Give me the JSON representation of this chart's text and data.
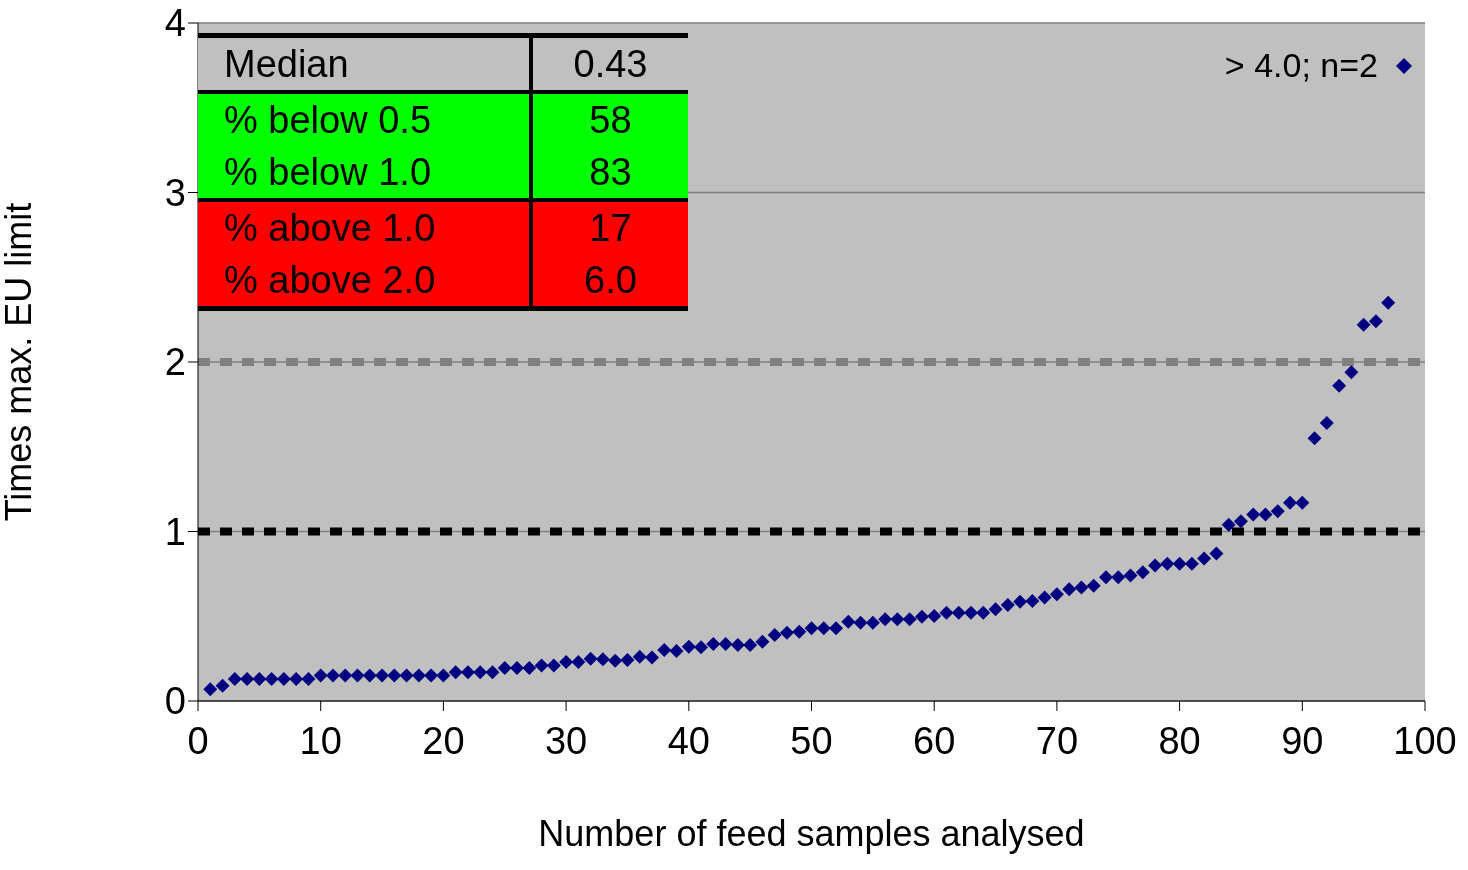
{
  "chart_data": {
    "type": "scatter",
    "xlabel": "Number of feed samples analysed",
    "ylabel": "Times max. EU limit",
    "x": [
      1,
      2,
      3,
      4,
      5,
      6,
      7,
      8,
      9,
      10,
      11,
      12,
      13,
      14,
      15,
      16,
      17,
      18,
      19,
      20,
      21,
      22,
      23,
      24,
      25,
      26,
      27,
      28,
      29,
      30,
      31,
      32,
      33,
      34,
      35,
      36,
      37,
      38,
      39,
      40,
      41,
      42,
      43,
      44,
      45,
      46,
      47,
      48,
      49,
      50,
      51,
      52,
      53,
      54,
      55,
      56,
      57,
      58,
      59,
      60,
      61,
      62,
      63,
      64,
      65,
      66,
      67,
      68,
      69,
      70,
      71,
      72,
      73,
      74,
      75,
      76,
      77,
      78,
      79,
      80,
      81,
      82,
      83,
      84,
      85,
      86,
      87,
      88,
      89,
      90,
      91,
      92,
      93,
      94,
      95,
      96,
      97
    ],
    "series": [
      {
        "color": "#000080",
        "values": [
          0.07,
          0.09,
          0.13,
          0.13,
          0.13,
          0.13,
          0.13,
          0.13,
          0.13,
          0.15,
          0.15,
          0.15,
          0.15,
          0.15,
          0.15,
          0.15,
          0.15,
          0.15,
          0.15,
          0.15,
          0.17,
          0.17,
          0.17,
          0.17,
          0.195,
          0.195,
          0.195,
          0.21,
          0.21,
          0.23,
          0.23,
          0.25,
          0.246,
          0.238,
          0.242,
          0.261,
          0.257,
          0.301,
          0.295,
          0.32,
          0.317,
          0.336,
          0.336,
          0.33,
          0.33,
          0.35,
          0.389,
          0.403,
          0.409,
          0.429,
          0.429,
          0.429,
          0.468,
          0.462,
          0.462,
          0.482,
          0.482,
          0.482,
          0.497,
          0.501,
          0.521,
          0.521,
          0.521,
          0.521,
          0.541,
          0.566,
          0.586,
          0.59,
          0.61,
          0.63,
          0.66,
          0.67,
          0.68,
          0.73,
          0.73,
          0.74,
          0.76,
          0.8,
          0.81,
          0.81,
          0.81,
          0.84,
          0.87,
          1.04,
          1.06,
          1.1,
          1.1,
          1.12,
          1.17,
          1.17,
          1.55,
          1.64,
          1.86,
          1.94,
          2.22,
          2.24,
          2.35
        ]
      }
    ],
    "xlim": [
      0,
      100
    ],
    "xticks": [
      0,
      10,
      20,
      30,
      40,
      50,
      60,
      70,
      80,
      90,
      100
    ],
    "ylim": [
      0,
      4
    ],
    "yticks": [
      0,
      1,
      2,
      3,
      4
    ],
    "grid": "y",
    "marker": "diamond",
    "ref_lines": [
      {
        "axis": "y",
        "value": 1,
        "color": "#000000",
        "line_style": "dashed"
      },
      {
        "axis": "y",
        "value": 2,
        "color": "#808080",
        "line_style": "dashed"
      }
    ],
    "annotations": [
      "Median",
      "0.43",
      "% below 0.5",
      "58",
      "% below 1.0",
      "83",
      "% above 1.0",
      "17",
      "% above 2.0",
      "6.0",
      "> 4.0; n=2"
    ]
  }
}
